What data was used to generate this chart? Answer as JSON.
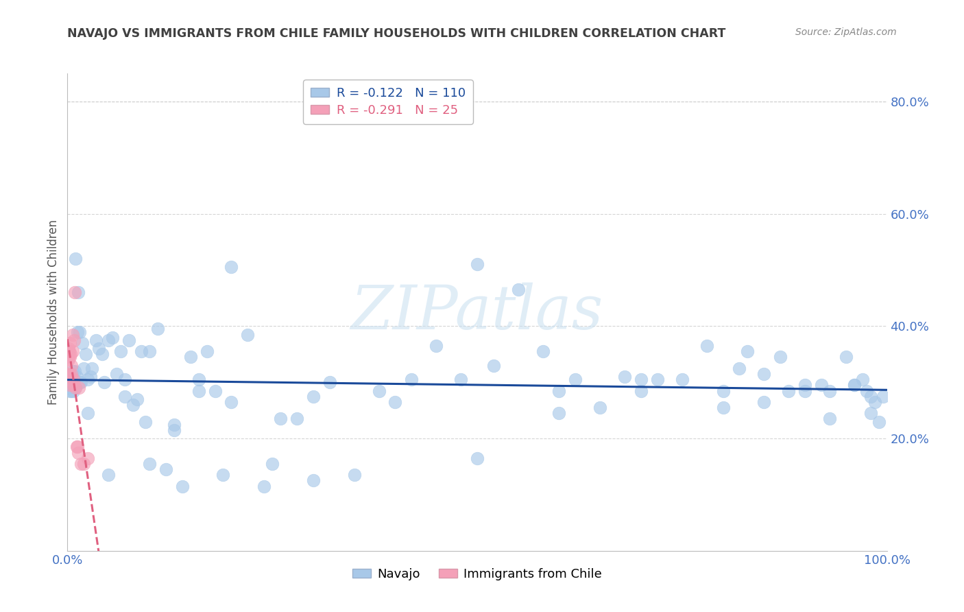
{
  "title": "NAVAJO VS IMMIGRANTS FROM CHILE FAMILY HOUSEHOLDS WITH CHILDREN CORRELATION CHART",
  "source": "Source: ZipAtlas.com",
  "ylabel": "Family Households with Children",
  "xlim": [
    0.0,
    1.0
  ],
  "ylim": [
    0.0,
    0.85
  ],
  "xtick_left": "0.0%",
  "xtick_right": "100.0%",
  "ytick_labels": [
    "20.0%",
    "40.0%",
    "60.0%",
    "80.0%"
  ],
  "ytick_vals": [
    0.2,
    0.4,
    0.6,
    0.8
  ],
  "navajo_R": -0.122,
  "navajo_N": 110,
  "chile_R": -0.291,
  "chile_N": 25,
  "navajo_color": "#a8c8e8",
  "chile_color": "#f4a0b8",
  "navajo_line_color": "#1a4a9a",
  "chile_line_color": "#e06080",
  "background_color": "#ffffff",
  "grid_color": "#cccccc",
  "label_color": "#4472c4",
  "title_color": "#404040",
  "watermark_text": "ZIPatlas",
  "legend_navajo": "Navajo",
  "legend_chile": "Immigrants from Chile",
  "navajo_x": [
    0.002,
    0.003,
    0.003,
    0.004,
    0.005,
    0.005,
    0.006,
    0.006,
    0.007,
    0.007,
    0.008,
    0.009,
    0.01,
    0.01,
    0.011,
    0.012,
    0.013,
    0.015,
    0.016,
    0.018,
    0.02,
    0.022,
    0.025,
    0.028,
    0.03,
    0.035,
    0.038,
    0.042,
    0.045,
    0.05,
    0.055,
    0.06,
    0.065,
    0.07,
    0.075,
    0.08,
    0.085,
    0.09,
    0.095,
    0.1,
    0.11,
    0.12,
    0.13,
    0.14,
    0.15,
    0.16,
    0.17,
    0.18,
    0.19,
    0.2,
    0.22,
    0.24,
    0.26,
    0.28,
    0.3,
    0.32,
    0.35,
    0.38,
    0.42,
    0.45,
    0.48,
    0.5,
    0.52,
    0.55,
    0.58,
    0.6,
    0.62,
    0.65,
    0.68,
    0.7,
    0.72,
    0.75,
    0.78,
    0.8,
    0.82,
    0.83,
    0.85,
    0.87,
    0.88,
    0.9,
    0.92,
    0.93,
    0.95,
    0.96,
    0.97,
    0.975,
    0.98,
    0.985,
    0.99,
    0.995,
    0.05,
    0.07,
    0.1,
    0.13,
    0.16,
    0.2,
    0.25,
    0.3,
    0.4,
    0.5,
    0.6,
    0.7,
    0.8,
    0.85,
    0.9,
    0.93,
    0.96,
    0.98,
    0.015,
    0.025
  ],
  "navajo_y": [
    0.295,
    0.29,
    0.285,
    0.3,
    0.285,
    0.295,
    0.31,
    0.32,
    0.3,
    0.285,
    0.305,
    0.32,
    0.52,
    0.29,
    0.31,
    0.39,
    0.46,
    0.39,
    0.3,
    0.37,
    0.325,
    0.35,
    0.305,
    0.31,
    0.325,
    0.375,
    0.36,
    0.35,
    0.3,
    0.375,
    0.38,
    0.315,
    0.355,
    0.305,
    0.375,
    0.26,
    0.27,
    0.355,
    0.23,
    0.355,
    0.395,
    0.145,
    0.225,
    0.115,
    0.345,
    0.305,
    0.355,
    0.285,
    0.135,
    0.505,
    0.385,
    0.115,
    0.235,
    0.235,
    0.125,
    0.3,
    0.135,
    0.285,
    0.305,
    0.365,
    0.305,
    0.51,
    0.33,
    0.465,
    0.355,
    0.285,
    0.305,
    0.255,
    0.31,
    0.285,
    0.305,
    0.305,
    0.365,
    0.285,
    0.325,
    0.355,
    0.315,
    0.345,
    0.285,
    0.295,
    0.295,
    0.285,
    0.345,
    0.295,
    0.305,
    0.285,
    0.245,
    0.265,
    0.23,
    0.275,
    0.135,
    0.275,
    0.155,
    0.215,
    0.285,
    0.265,
    0.155,
    0.275,
    0.265,
    0.165,
    0.245,
    0.305,
    0.255,
    0.265,
    0.285,
    0.235,
    0.295,
    0.275,
    0.3,
    0.245
  ],
  "chile_x": [
    0.001,
    0.001,
    0.002,
    0.002,
    0.003,
    0.003,
    0.003,
    0.004,
    0.004,
    0.005,
    0.005,
    0.006,
    0.006,
    0.007,
    0.007,
    0.008,
    0.009,
    0.01,
    0.011,
    0.012,
    0.013,
    0.014,
    0.016,
    0.02,
    0.025
  ],
  "chile_y": [
    0.34,
    0.36,
    0.315,
    0.355,
    0.345,
    0.37,
    0.295,
    0.31,
    0.35,
    0.315,
    0.33,
    0.355,
    0.385,
    0.305,
    0.295,
    0.375,
    0.46,
    0.29,
    0.185,
    0.185,
    0.175,
    0.29,
    0.155,
    0.155,
    0.165
  ]
}
